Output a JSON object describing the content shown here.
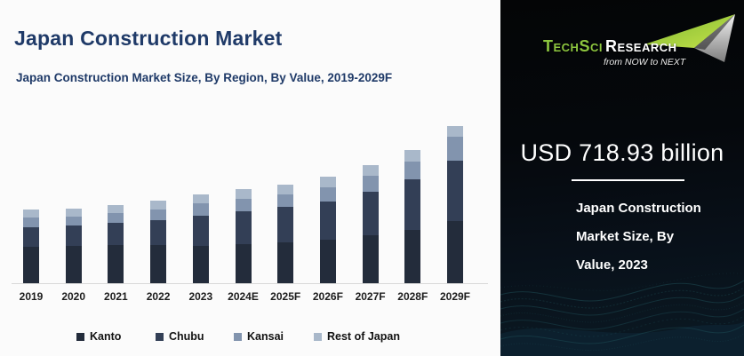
{
  "page": {
    "title": "Japan Construction Market",
    "subtitle": "Japan Construction Market Size, By Region, By Value, 2019-2029F"
  },
  "chart_data": {
    "type": "bar",
    "stacked": true,
    "unit": "USD billion",
    "categories": [
      "2019",
      "2020",
      "2021",
      "2022",
      "2023",
      "2024E",
      "2025F",
      "2026F",
      "2027F",
      "2028F",
      "2029F"
    ],
    "series": [
      {
        "name": "Kanto",
        "color": "#232c3b",
        "values": [
          296,
          299,
          308,
          313,
          305,
          318,
          331,
          352,
          388,
          434,
          506
        ]
      },
      {
        "name": "Chubu",
        "color": "#333f56",
        "values": [
          157,
          166,
          181,
          200,
          245,
          262,
          286,
          312,
          350,
          404,
          489
        ]
      },
      {
        "name": "Kansai",
        "color": "#8294ae",
        "values": [
          78,
          76,
          78,
          84,
          96,
          102,
          105,
          114,
          131,
          148,
          188
        ]
      },
      {
        "name": "Rest of Japan",
        "color": "#a9b8ca",
        "values": [
          63,
          65,
          69,
          75,
          73,
          78,
          80,
          84,
          86,
          90,
          91
        ]
      }
    ],
    "totals_estimated": [
      594,
      606,
      636,
      672,
      718.93,
      760,
      802,
      862,
      955,
      1076,
      1274
    ],
    "anchor_label": {
      "year": "2023",
      "total": 718.93
    },
    "legend_position": "bottom",
    "gridlines": false,
    "y_axis_visible": false
  },
  "panel": {
    "logo": {
      "brand_primary": "TechSci",
      "brand_secondary": "Research",
      "tagline": "from NOW to NEXT",
      "green": "#8dc63f"
    },
    "highlight_value": "USD 718.93 billion",
    "caption_lines": [
      "Japan Construction",
      "Market Size, By",
      "Value, 2023"
    ]
  },
  "colors": {
    "title_navy": "#1f3a68",
    "panel_background_top": "#040506",
    "panel_background_bottom": "#0b1a24",
    "wave_teal": "#2e7a80",
    "axis_line": "#d8d8d8",
    "left_background": "#fbfbfb"
  }
}
